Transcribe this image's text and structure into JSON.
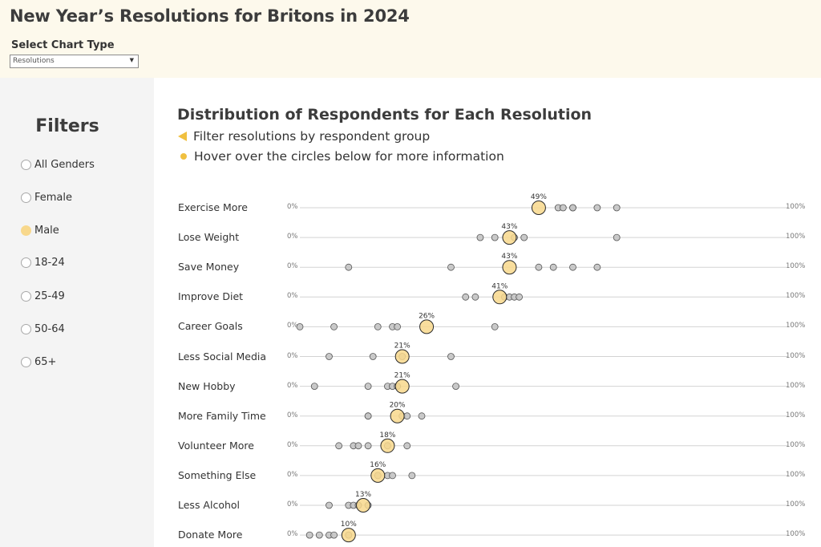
{
  "header": {
    "title": "New Year’s Resolutions for Britons in 2024",
    "select_label": "Select Chart Type",
    "select_value": "Resolutions"
  },
  "sidebar": {
    "title": "Filters",
    "items": [
      {
        "label": "All Genders",
        "selected": false
      },
      {
        "label": "Female",
        "selected": false
      },
      {
        "label": "Male",
        "selected": true
      },
      {
        "label": "18-24",
        "selected": false
      },
      {
        "label": "25-49",
        "selected": false
      },
      {
        "label": "50-64",
        "selected": false
      },
      {
        "label": "65+",
        "selected": false
      }
    ]
  },
  "main": {
    "title": "Distribution of Respondents for Each Resolution",
    "hint_filter": "Filter resolutions by respondent group",
    "hint_hover": "Hover over the circles below for more information"
  },
  "colors": {
    "highlight": "#f8d88c",
    "highlight_stroke": "#2a2a2a",
    "other": "#c4c4c4",
    "axis": "#d3d3d3",
    "accent": "#f0c040"
  },
  "chart_data": {
    "type": "scatter",
    "axis_min_label": "0%",
    "axis_max_label": "100%",
    "xlim": [
      0,
      100
    ],
    "resolutions": [
      {
        "name": "Exercise More",
        "highlight": 49,
        "label": "49%",
        "others": [
          53,
          54,
          56,
          56,
          61,
          65
        ]
      },
      {
        "name": "Lose Weight",
        "highlight": 43,
        "label": "43%",
        "others": [
          37,
          40,
          44,
          46,
          65
        ]
      },
      {
        "name": "Save Money",
        "highlight": 43,
        "label": "43%",
        "others": [
          10,
          31,
          49,
          52,
          56,
          61
        ]
      },
      {
        "name": "Improve Diet",
        "highlight": 41,
        "label": "41%",
        "others": [
          34,
          36,
          42,
          43,
          44,
          45
        ]
      },
      {
        "name": "Career Goals",
        "highlight": 26,
        "label": "26%",
        "others": [
          0,
          7,
          16,
          19,
          20,
          40
        ]
      },
      {
        "name": "Less Social Media",
        "highlight": 21,
        "label": "21%",
        "others": [
          6,
          15,
          21,
          31
        ]
      },
      {
        "name": "New Hobby",
        "highlight": 21,
        "label": "21%",
        "others": [
          3,
          14,
          18,
          19,
          20,
          32
        ]
      },
      {
        "name": "More Family Time",
        "highlight": 20,
        "label": "20%",
        "others": [
          14,
          14,
          21,
          22,
          25
        ]
      },
      {
        "name": "Volunteer More",
        "highlight": 18,
        "label": "18%",
        "others": [
          8,
          11,
          12,
          14,
          18,
          22
        ]
      },
      {
        "name": "Something Else",
        "highlight": 16,
        "label": "16%",
        "others": [
          16,
          18,
          19,
          23
        ]
      },
      {
        "name": "Less Alcohol",
        "highlight": 13,
        "label": "13%",
        "others": [
          6,
          10,
          11,
          12,
          14
        ]
      },
      {
        "name": "Donate More",
        "highlight": 10,
        "label": "10%",
        "others": [
          2,
          4,
          6,
          7,
          10
        ]
      }
    ]
  }
}
